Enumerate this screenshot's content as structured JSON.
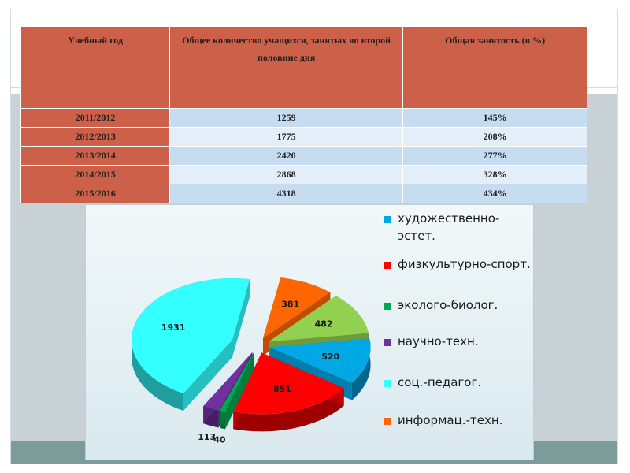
{
  "table": {
    "headers": [
      "Учебный год",
      "Общее количество учащихся, занятых во второй половине дня",
      "Общая занятость (в %)"
    ],
    "rows": [
      [
        "2011/2012",
        "1259",
        "145%"
      ],
      [
        "2012/2013",
        "1775",
        "208%"
      ],
      [
        "2013/2014",
        "2420",
        "277%"
      ],
      [
        "2014/2015",
        "2868",
        "328%"
      ],
      [
        "2015/2016",
        "4318",
        "434%"
      ]
    ]
  },
  "chart_data": {
    "type": "pie",
    "title": "",
    "slices": [
      {
        "label": "художественно-эстет.",
        "value": 520,
        "color": "#00a8e6"
      },
      {
        "label": "физкультурно-спорт.",
        "value": 851,
        "color": "#ff0000"
      },
      {
        "label": "эколого-биолог.",
        "value": 40,
        "color": "#00a650"
      },
      {
        "label": "научно-техн.",
        "value": 113,
        "color": "#7030a0"
      },
      {
        "label": "соц.-педагог.",
        "value": 1931,
        "color": "#33ffff"
      },
      {
        "label": "информац.-техн.",
        "value": 381,
        "color": "#ff6600"
      },
      {
        "label": "",
        "value": 482,
        "color": "#92d050"
      }
    ],
    "legend": [
      {
        "label": "художественно-эстет.",
        "color": "#00a8e6"
      },
      {
        "label": "физкультурно-спорт.",
        "color": "#ff0000"
      },
      {
        "label": "эколого-биолог.",
        "color": "#00a650"
      },
      {
        "label": "научно-техн.",
        "color": "#7030a0"
      },
      {
        "label": "соц.-педагог.",
        "color": "#33ffff"
      },
      {
        "label": "информац.-техн.",
        "color": "#ff6600"
      }
    ],
    "legend_position": "right",
    "style": "3d-exploded"
  }
}
